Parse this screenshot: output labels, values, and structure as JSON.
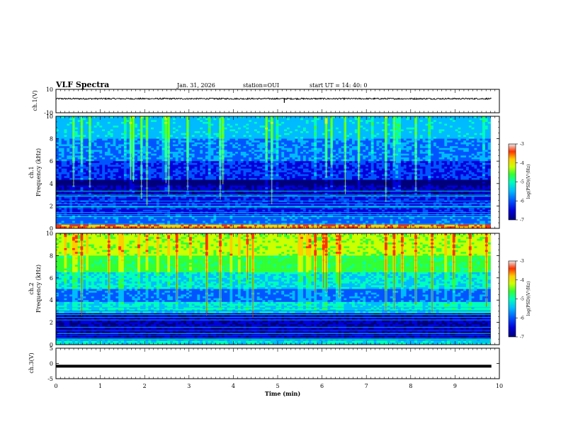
{
  "header": {
    "title": "VLF Spectra",
    "date": "Jan. 31, 2026",
    "station": "station=OUI",
    "start": "start UT =  14: 40: 0"
  },
  "chart_data": [
    {
      "type": "line",
      "id": "ch1_waveform",
      "ylabel": "ch.1(V)",
      "ylim": [
        -10,
        10
      ],
      "yticks": [
        10,
        -10
      ],
      "xlim": [
        0,
        10
      ],
      "level_v": 2.0,
      "noise_amplitude_v": 0.6,
      "spike_time_min": 5.15,
      "spike_value_v": -1.5
    },
    {
      "type": "heatmap",
      "id": "ch1_spectrogram",
      "ylabel": "ch.1 Frequency (kHz)",
      "ylim": [
        0,
        10
      ],
      "yticks": [
        0,
        2,
        4,
        6,
        8,
        10
      ],
      "xlim": [
        0,
        10
      ],
      "data_end_min": 9.8,
      "dominant_band": "blue/cyan noise with green impulses; dark band near 4 kHz; red line near 0.2 kHz",
      "colorbar": {
        "label": "log(PSD)(V²/Hz)",
        "range": [
          -7,
          -3
        ],
        "ticks": [
          -3,
          -4,
          -5,
          -6,
          -7
        ]
      }
    },
    {
      "type": "heatmap",
      "id": "ch2_spectrogram",
      "ylabel": "ch.2 Frequency (kHz)",
      "ylim": [
        0,
        10
      ],
      "yticks": [
        0,
        2,
        4,
        6,
        8,
        10
      ],
      "xlim": [
        0,
        10
      ],
      "data_end_min": 9.8,
      "dominant_band": "yellow/green above 6 kHz with red impulses; cyan-green band near 3.3 kHz; blue below 3 kHz",
      "colorbar": {
        "label": "log(PSD)(V²/Hz)",
        "range": [
          -7,
          -3
        ],
        "ticks": [
          -3,
          -4,
          -5,
          -6,
          -7
        ]
      }
    },
    {
      "type": "line",
      "id": "ch3_waveform",
      "ylabel": "ch.3(V)",
      "ylim": [
        -5,
        5
      ],
      "yticks": [
        5,
        0,
        -5
      ],
      "xlim": [
        0,
        10
      ],
      "level_v": -0.9
    }
  ],
  "xaxis": {
    "label": "Time (min)",
    "ticks": [
      "0",
      "1",
      "2",
      "3",
      "4",
      "5",
      "6",
      "7",
      "8",
      "9",
      "10"
    ]
  },
  "colors": {
    "colormap": [
      "#00007a",
      "#0000d8",
      "#0055ff",
      "#00bbff",
      "#00ffbb",
      "#33ff33",
      "#ccff00",
      "#ffcc00",
      "#ff3300",
      "#e0e0e0"
    ]
  }
}
